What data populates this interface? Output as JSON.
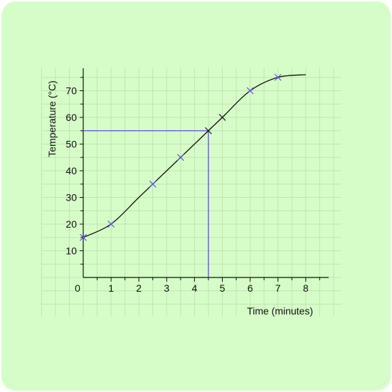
{
  "chart_data": {
    "type": "line",
    "xlabel": "Time (minutes)",
    "ylabel": "Temperature (°C)",
    "xlim": [
      0,
      8
    ],
    "ylim": [
      0,
      76
    ],
    "x_ticks": [
      0,
      1,
      2,
      3,
      4,
      5,
      6,
      7,
      8
    ],
    "y_ticks": [
      10,
      20,
      30,
      40,
      50,
      60,
      70
    ],
    "origin_label": "0",
    "grid": true,
    "series": [
      {
        "marker": "x",
        "color": "#5b4fd8",
        "points": [
          [
            0,
            15
          ],
          [
            1,
            20
          ],
          [
            2.5,
            35
          ],
          [
            3.5,
            45
          ],
          [
            6,
            70
          ],
          [
            7,
            75
          ]
        ]
      },
      {
        "marker": "x",
        "color": "#111111",
        "points": [
          [
            4.5,
            55
          ],
          [
            5,
            60
          ]
        ]
      }
    ],
    "curve": {
      "color": "#111111",
      "points": [
        [
          0,
          15
        ],
        [
          1,
          20
        ],
        [
          2,
          30
        ],
        [
          3,
          40
        ],
        [
          4,
          50
        ],
        [
          5,
          60
        ],
        [
          6,
          70
        ],
        [
          7,
          75
        ],
        [
          8,
          76
        ]
      ]
    },
    "reading_lines": {
      "color": "#5b4fd8",
      "x": 4.5,
      "y": 55
    }
  }
}
